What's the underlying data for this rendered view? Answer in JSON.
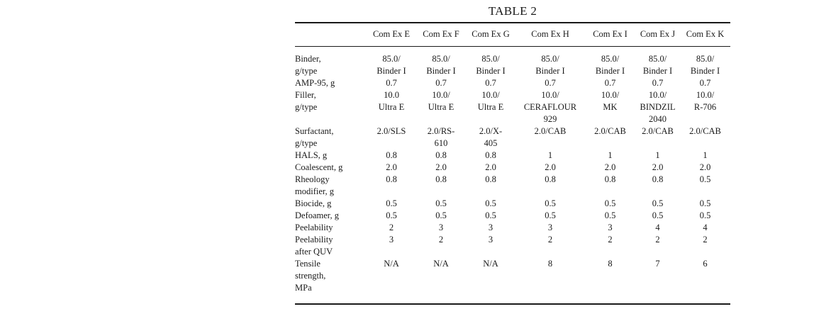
{
  "table": {
    "title": "TABLE 2",
    "columns": [
      "Com Ex E",
      "Com Ex F",
      "Com Ex G",
      "Com Ex H",
      "Com Ex I",
      "Com Ex J",
      "Com Ex K"
    ],
    "rows": [
      {
        "label": "Binder,\ng/type",
        "values": [
          "85.0/\nBinder I",
          "85.0/\nBinder I",
          "85.0/\nBinder I",
          "85.0/\nBinder I",
          "85.0/\nBinder I",
          "85.0/\nBinder I",
          "85.0/\nBinder I"
        ]
      },
      {
        "label": "AMP-95, g",
        "values": [
          "0.7",
          "0.7",
          "0.7",
          "0.7",
          "0.7",
          "0.7",
          "0.7"
        ]
      },
      {
        "label": "Filler,\ng/type",
        "values": [
          "10.0\nUltra E",
          "10.0/\nUltra E",
          "10.0/\nUltra E",
          "10.0/\nCERAFLOUR\n929",
          "10.0/\nMK",
          "10.0/\nBINDZIL\n2040",
          "10.0/\nR-706"
        ]
      },
      {
        "label": "Surfactant,\ng/type",
        "values": [
          "2.0/SLS",
          "2.0/RS-\n610",
          "2.0/X-\n405",
          "2.0/CAB",
          "2.0/CAB",
          "2.0/CAB",
          "2.0/CAB"
        ]
      },
      {
        "label": "HALS, g",
        "values": [
          "0.8",
          "0.8",
          "0.8",
          "1",
          "1",
          "1",
          "1"
        ]
      },
      {
        "label": "Coalescent, g",
        "values": [
          "2.0",
          "2.0",
          "2.0",
          "2.0",
          "2.0",
          "2.0",
          "2.0"
        ]
      },
      {
        "label": "Rheology\nmodifier, g",
        "values": [
          "0.8",
          "0.8",
          "0.8",
          "0.8",
          "0.8",
          "0.8",
          "0.5"
        ]
      },
      {
        "label": "Biocide, g",
        "values": [
          "0.5",
          "0.5",
          "0.5",
          "0.5",
          "0.5",
          "0.5",
          "0.5"
        ]
      },
      {
        "label": "Defoamer, g",
        "values": [
          "0.5",
          "0.5",
          "0.5",
          "0.5",
          "0.5",
          "0.5",
          "0.5"
        ]
      },
      {
        "label": "Peelability",
        "values": [
          "2",
          "3",
          "3",
          "3",
          "3",
          "4",
          "4"
        ]
      },
      {
        "label": "Peelability\nafter QUV",
        "values": [
          "3",
          "2",
          "3",
          "2",
          "2",
          "2",
          "2"
        ]
      },
      {
        "label": "Tensile\nstrength,\nMPa",
        "values": [
          "N/A",
          "N/A",
          "N/A",
          "8",
          "8",
          "7",
          "6"
        ]
      }
    ]
  }
}
